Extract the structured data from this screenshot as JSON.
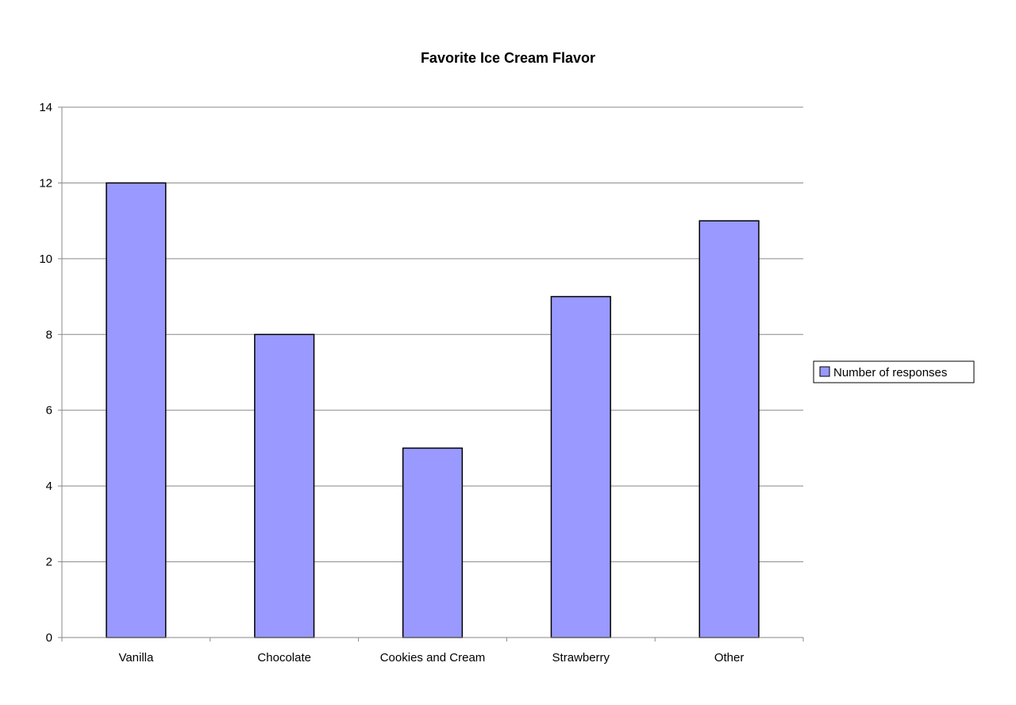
{
  "chart_data": {
    "type": "bar",
    "title": "Favorite Ice Cream Flavor",
    "categories": [
      "Vanilla",
      "Chocolate",
      "Cookies and Cream",
      "Strawberry",
      "Other"
    ],
    "series": [
      {
        "name": "Number of responses",
        "values": [
          12,
          8,
          5,
          9,
          11
        ],
        "color": "#9999ff"
      }
    ],
    "xlabel": "",
    "ylabel": "",
    "ylim": [
      0,
      14
    ],
    "yticks": [
      "0",
      "2",
      "4",
      "6",
      "8",
      "10",
      "12",
      "14"
    ],
    "grid": true,
    "legend_position": "right"
  }
}
